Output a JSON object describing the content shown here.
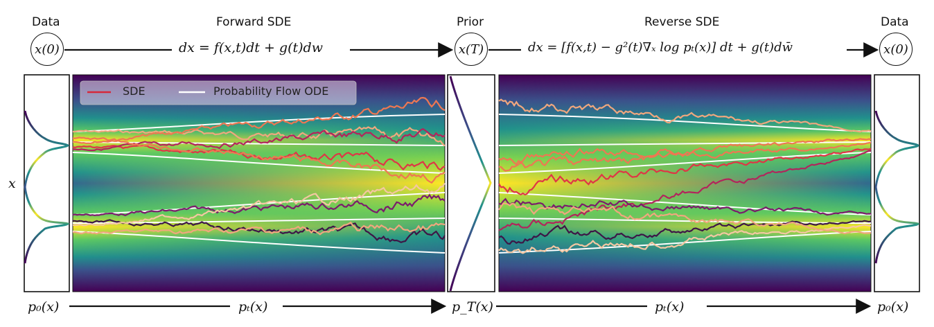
{
  "headers": {
    "data_left": "Data",
    "forward": "Forward SDE",
    "prior": "Prior",
    "reverse": "Reverse SDE",
    "data_right": "Data"
  },
  "nodes": {
    "x0_left": "x(0)",
    "xT": "x(T)",
    "x0_right": "x(0)"
  },
  "equations": {
    "forward": "dx = f(x,t)dt + g(t)dw",
    "reverse": "dx = [f(x,t) − g²(t)∇ₓ log pₜ(x)] dt + g(t)dw̄"
  },
  "axis": {
    "y_label": "x"
  },
  "bottom_labels": {
    "p0_left": "p₀(x)",
    "pt_forward": "pₜ(x)",
    "pT": "p_T(x)",
    "pt_reverse": "pₜ(x)",
    "p0_right": "p₀(x)"
  },
  "legend": {
    "sde": "SDE",
    "ode": "Probability Flow ODE"
  },
  "colors": {
    "sde_legend": "#d6283a",
    "ode_legend": "#ffffff",
    "trajectories": [
      "#f1a77e",
      "#ef7752",
      "#e03546",
      "#b3245c",
      "#7b1c6c",
      "#3d1647",
      "#f5c7a2"
    ]
  }
}
